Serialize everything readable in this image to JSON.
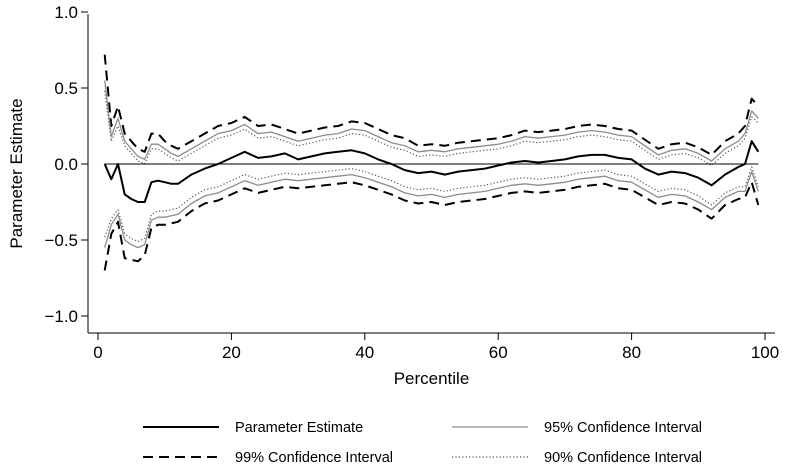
{
  "chart_data": {
    "type": "line",
    "title": "",
    "xlabel": "Percentile",
    "ylabel": "Parameter Estimate",
    "xlim": [
      0,
      100
    ],
    "ylim": [
      -1.0,
      1.0
    ],
    "xticks": [
      0,
      20,
      40,
      60,
      80,
      100
    ],
    "xtick_labels": [
      "0",
      "20",
      "40",
      "60",
      "80",
      "100"
    ],
    "yticks": [
      -1.0,
      -0.5,
      0.0,
      0.5,
      1.0
    ],
    "ytick_labels": [
      "−1.0",
      "−0.5",
      "0.0",
      "0.5",
      "1.0"
    ],
    "grid": false,
    "reference_line_y": 0,
    "legend_position": "bottom",
    "colors": {
      "estimate": "#000000",
      "ci95": "#8c8c8c",
      "ci99": "#000000",
      "ci90": "#555555"
    },
    "series": [
      {
        "name": "Parameter Estimate",
        "style": "solid",
        "x": [
          1,
          2,
          3,
          4,
          5,
          6,
          7,
          8,
          9,
          10,
          11,
          12,
          14,
          16,
          18,
          20,
          22,
          24,
          26,
          28,
          30,
          32,
          34,
          36,
          38,
          40,
          42,
          44,
          46,
          48,
          50,
          52,
          54,
          56,
          58,
          60,
          62,
          64,
          66,
          68,
          70,
          72,
          74,
          76,
          78,
          80,
          82,
          84,
          86,
          88,
          90,
          92,
          94,
          96,
          97,
          98,
          99
        ],
        "values": [
          0.0,
          -0.1,
          0.0,
          -0.2,
          -0.23,
          -0.25,
          -0.25,
          -0.12,
          -0.11,
          -0.12,
          -0.13,
          -0.13,
          -0.07,
          -0.03,
          0.0,
          0.04,
          0.08,
          0.04,
          0.05,
          0.07,
          0.03,
          0.05,
          0.07,
          0.08,
          0.09,
          0.07,
          0.03,
          0.0,
          -0.04,
          -0.06,
          -0.05,
          -0.07,
          -0.05,
          -0.04,
          -0.03,
          -0.01,
          0.01,
          0.02,
          0.01,
          0.02,
          0.03,
          0.05,
          0.06,
          0.06,
          0.04,
          0.03,
          -0.03,
          -0.07,
          -0.05,
          -0.06,
          -0.09,
          -0.14,
          -0.07,
          -0.02,
          0.0,
          0.15,
          0.08
        ]
      },
      {
        "name": "95% Confidence Interval",
        "style": "solid",
        "x": [
          1,
          2,
          3,
          4,
          5,
          6,
          7,
          8,
          9,
          10,
          11,
          12,
          14,
          16,
          18,
          20,
          22,
          24,
          26,
          28,
          30,
          32,
          34,
          36,
          38,
          40,
          42,
          44,
          46,
          48,
          50,
          52,
          54,
          56,
          58,
          60,
          62,
          64,
          66,
          68,
          70,
          72,
          74,
          76,
          78,
          80,
          82,
          84,
          86,
          88,
          90,
          92,
          94,
          96,
          97,
          98,
          99
        ],
        "upper": [
          0.55,
          0.18,
          0.3,
          0.15,
          0.1,
          0.05,
          0.03,
          0.13,
          0.13,
          0.1,
          0.07,
          0.05,
          0.1,
          0.15,
          0.2,
          0.22,
          0.26,
          0.2,
          0.21,
          0.18,
          0.15,
          0.17,
          0.19,
          0.2,
          0.23,
          0.22,
          0.18,
          0.14,
          0.12,
          0.08,
          0.09,
          0.08,
          0.1,
          0.11,
          0.12,
          0.13,
          0.15,
          0.18,
          0.17,
          0.18,
          0.19,
          0.21,
          0.22,
          0.21,
          0.19,
          0.18,
          0.12,
          0.06,
          0.09,
          0.1,
          0.07,
          0.02,
          0.1,
          0.15,
          0.2,
          0.35,
          0.3
        ],
        "lower": [
          -0.55,
          -0.4,
          -0.33,
          -0.5,
          -0.53,
          -0.55,
          -0.53,
          -0.37,
          -0.35,
          -0.35,
          -0.34,
          -0.33,
          -0.26,
          -0.21,
          -0.19,
          -0.15,
          -0.11,
          -0.14,
          -0.12,
          -0.1,
          -0.11,
          -0.1,
          -0.09,
          -0.08,
          -0.07,
          -0.09,
          -0.12,
          -0.15,
          -0.19,
          -0.21,
          -0.2,
          -0.22,
          -0.2,
          -0.19,
          -0.18,
          -0.16,
          -0.14,
          -0.13,
          -0.14,
          -0.13,
          -0.12,
          -0.1,
          -0.09,
          -0.08,
          -0.11,
          -0.12,
          -0.17,
          -0.22,
          -0.2,
          -0.21,
          -0.25,
          -0.3,
          -0.22,
          -0.18,
          -0.18,
          -0.05,
          -0.18
        ]
      },
      {
        "name": "99% Confidence Interval",
        "style": "dashed",
        "x": [
          1,
          2,
          3,
          4,
          5,
          6,
          7,
          8,
          9,
          10,
          11,
          12,
          14,
          16,
          18,
          20,
          22,
          24,
          26,
          28,
          30,
          32,
          34,
          36,
          38,
          40,
          42,
          44,
          46,
          48,
          50,
          52,
          54,
          56,
          58,
          60,
          62,
          64,
          66,
          68,
          70,
          72,
          74,
          76,
          78,
          80,
          82,
          84,
          86,
          88,
          90,
          92,
          94,
          96,
          97,
          98,
          99
        ],
        "upper": [
          0.72,
          0.25,
          0.38,
          0.2,
          0.15,
          0.1,
          0.08,
          0.2,
          0.2,
          0.15,
          0.12,
          0.1,
          0.15,
          0.2,
          0.25,
          0.27,
          0.31,
          0.25,
          0.26,
          0.23,
          0.2,
          0.22,
          0.24,
          0.25,
          0.28,
          0.27,
          0.23,
          0.19,
          0.17,
          0.12,
          0.13,
          0.12,
          0.14,
          0.15,
          0.16,
          0.17,
          0.19,
          0.22,
          0.21,
          0.22,
          0.23,
          0.25,
          0.26,
          0.25,
          0.23,
          0.22,
          0.16,
          0.1,
          0.13,
          0.14,
          0.11,
          0.06,
          0.15,
          0.2,
          0.25,
          0.43,
          0.38
        ],
        "lower": [
          -0.7,
          -0.46,
          -0.38,
          -0.62,
          -0.63,
          -0.64,
          -0.6,
          -0.42,
          -0.4,
          -0.4,
          -0.39,
          -0.38,
          -0.31,
          -0.26,
          -0.24,
          -0.2,
          -0.16,
          -0.19,
          -0.17,
          -0.15,
          -0.16,
          -0.15,
          -0.14,
          -0.13,
          -0.12,
          -0.14,
          -0.17,
          -0.2,
          -0.24,
          -0.26,
          -0.25,
          -0.27,
          -0.25,
          -0.24,
          -0.23,
          -0.21,
          -0.19,
          -0.18,
          -0.19,
          -0.18,
          -0.17,
          -0.15,
          -0.14,
          -0.13,
          -0.16,
          -0.17,
          -0.22,
          -0.27,
          -0.25,
          -0.26,
          -0.3,
          -0.36,
          -0.27,
          -0.23,
          -0.22,
          -0.12,
          -0.27
        ]
      },
      {
        "name": "90% Confidence Interval",
        "style": "dotted",
        "x": [
          1,
          2,
          3,
          4,
          5,
          6,
          7,
          8,
          9,
          10,
          11,
          12,
          14,
          16,
          18,
          20,
          22,
          24,
          26,
          28,
          30,
          32,
          34,
          36,
          38,
          40,
          42,
          44,
          46,
          48,
          50,
          52,
          54,
          56,
          58,
          60,
          62,
          64,
          66,
          68,
          70,
          72,
          74,
          76,
          78,
          80,
          82,
          84,
          86,
          88,
          90,
          92,
          94,
          96,
          97,
          98,
          99
        ],
        "upper": [
          0.48,
          0.15,
          0.25,
          0.12,
          0.07,
          0.02,
          0.0,
          0.1,
          0.1,
          0.07,
          0.04,
          0.02,
          0.07,
          0.12,
          0.17,
          0.19,
          0.23,
          0.17,
          0.18,
          0.15,
          0.12,
          0.14,
          0.16,
          0.17,
          0.2,
          0.19,
          0.15,
          0.11,
          0.09,
          0.05,
          0.06,
          0.05,
          0.07,
          0.08,
          0.09,
          0.1,
          0.12,
          0.15,
          0.14,
          0.15,
          0.16,
          0.18,
          0.19,
          0.18,
          0.16,
          0.15,
          0.09,
          0.03,
          0.06,
          0.07,
          0.04,
          -0.01,
          0.07,
          0.12,
          0.17,
          0.31,
          0.27
        ],
        "lower": [
          -0.48,
          -0.36,
          -0.3,
          -0.46,
          -0.49,
          -0.51,
          -0.49,
          -0.33,
          -0.31,
          -0.31,
          -0.3,
          -0.29,
          -0.22,
          -0.17,
          -0.15,
          -0.11,
          -0.07,
          -0.1,
          -0.08,
          -0.06,
          -0.07,
          -0.06,
          -0.05,
          -0.04,
          -0.03,
          -0.05,
          -0.08,
          -0.11,
          -0.15,
          -0.17,
          -0.16,
          -0.18,
          -0.16,
          -0.15,
          -0.14,
          -0.12,
          -0.1,
          -0.09,
          -0.1,
          -0.09,
          -0.08,
          -0.06,
          -0.05,
          -0.04,
          -0.07,
          -0.08,
          -0.13,
          -0.18,
          -0.16,
          -0.17,
          -0.21,
          -0.27,
          -0.19,
          -0.15,
          -0.15,
          -0.02,
          -0.15
        ]
      }
    ],
    "legend": [
      {
        "label": "Parameter Estimate",
        "style": "solid",
        "color": "#000000"
      },
      {
        "label": "95% Confidence Interval",
        "style": "solid",
        "color": "#8c8c8c"
      },
      {
        "label": "99% Confidence Interval",
        "style": "dashed",
        "color": "#000000"
      },
      {
        "label": "90% Confidence Interval",
        "style": "dotted",
        "color": "#555555"
      }
    ]
  }
}
